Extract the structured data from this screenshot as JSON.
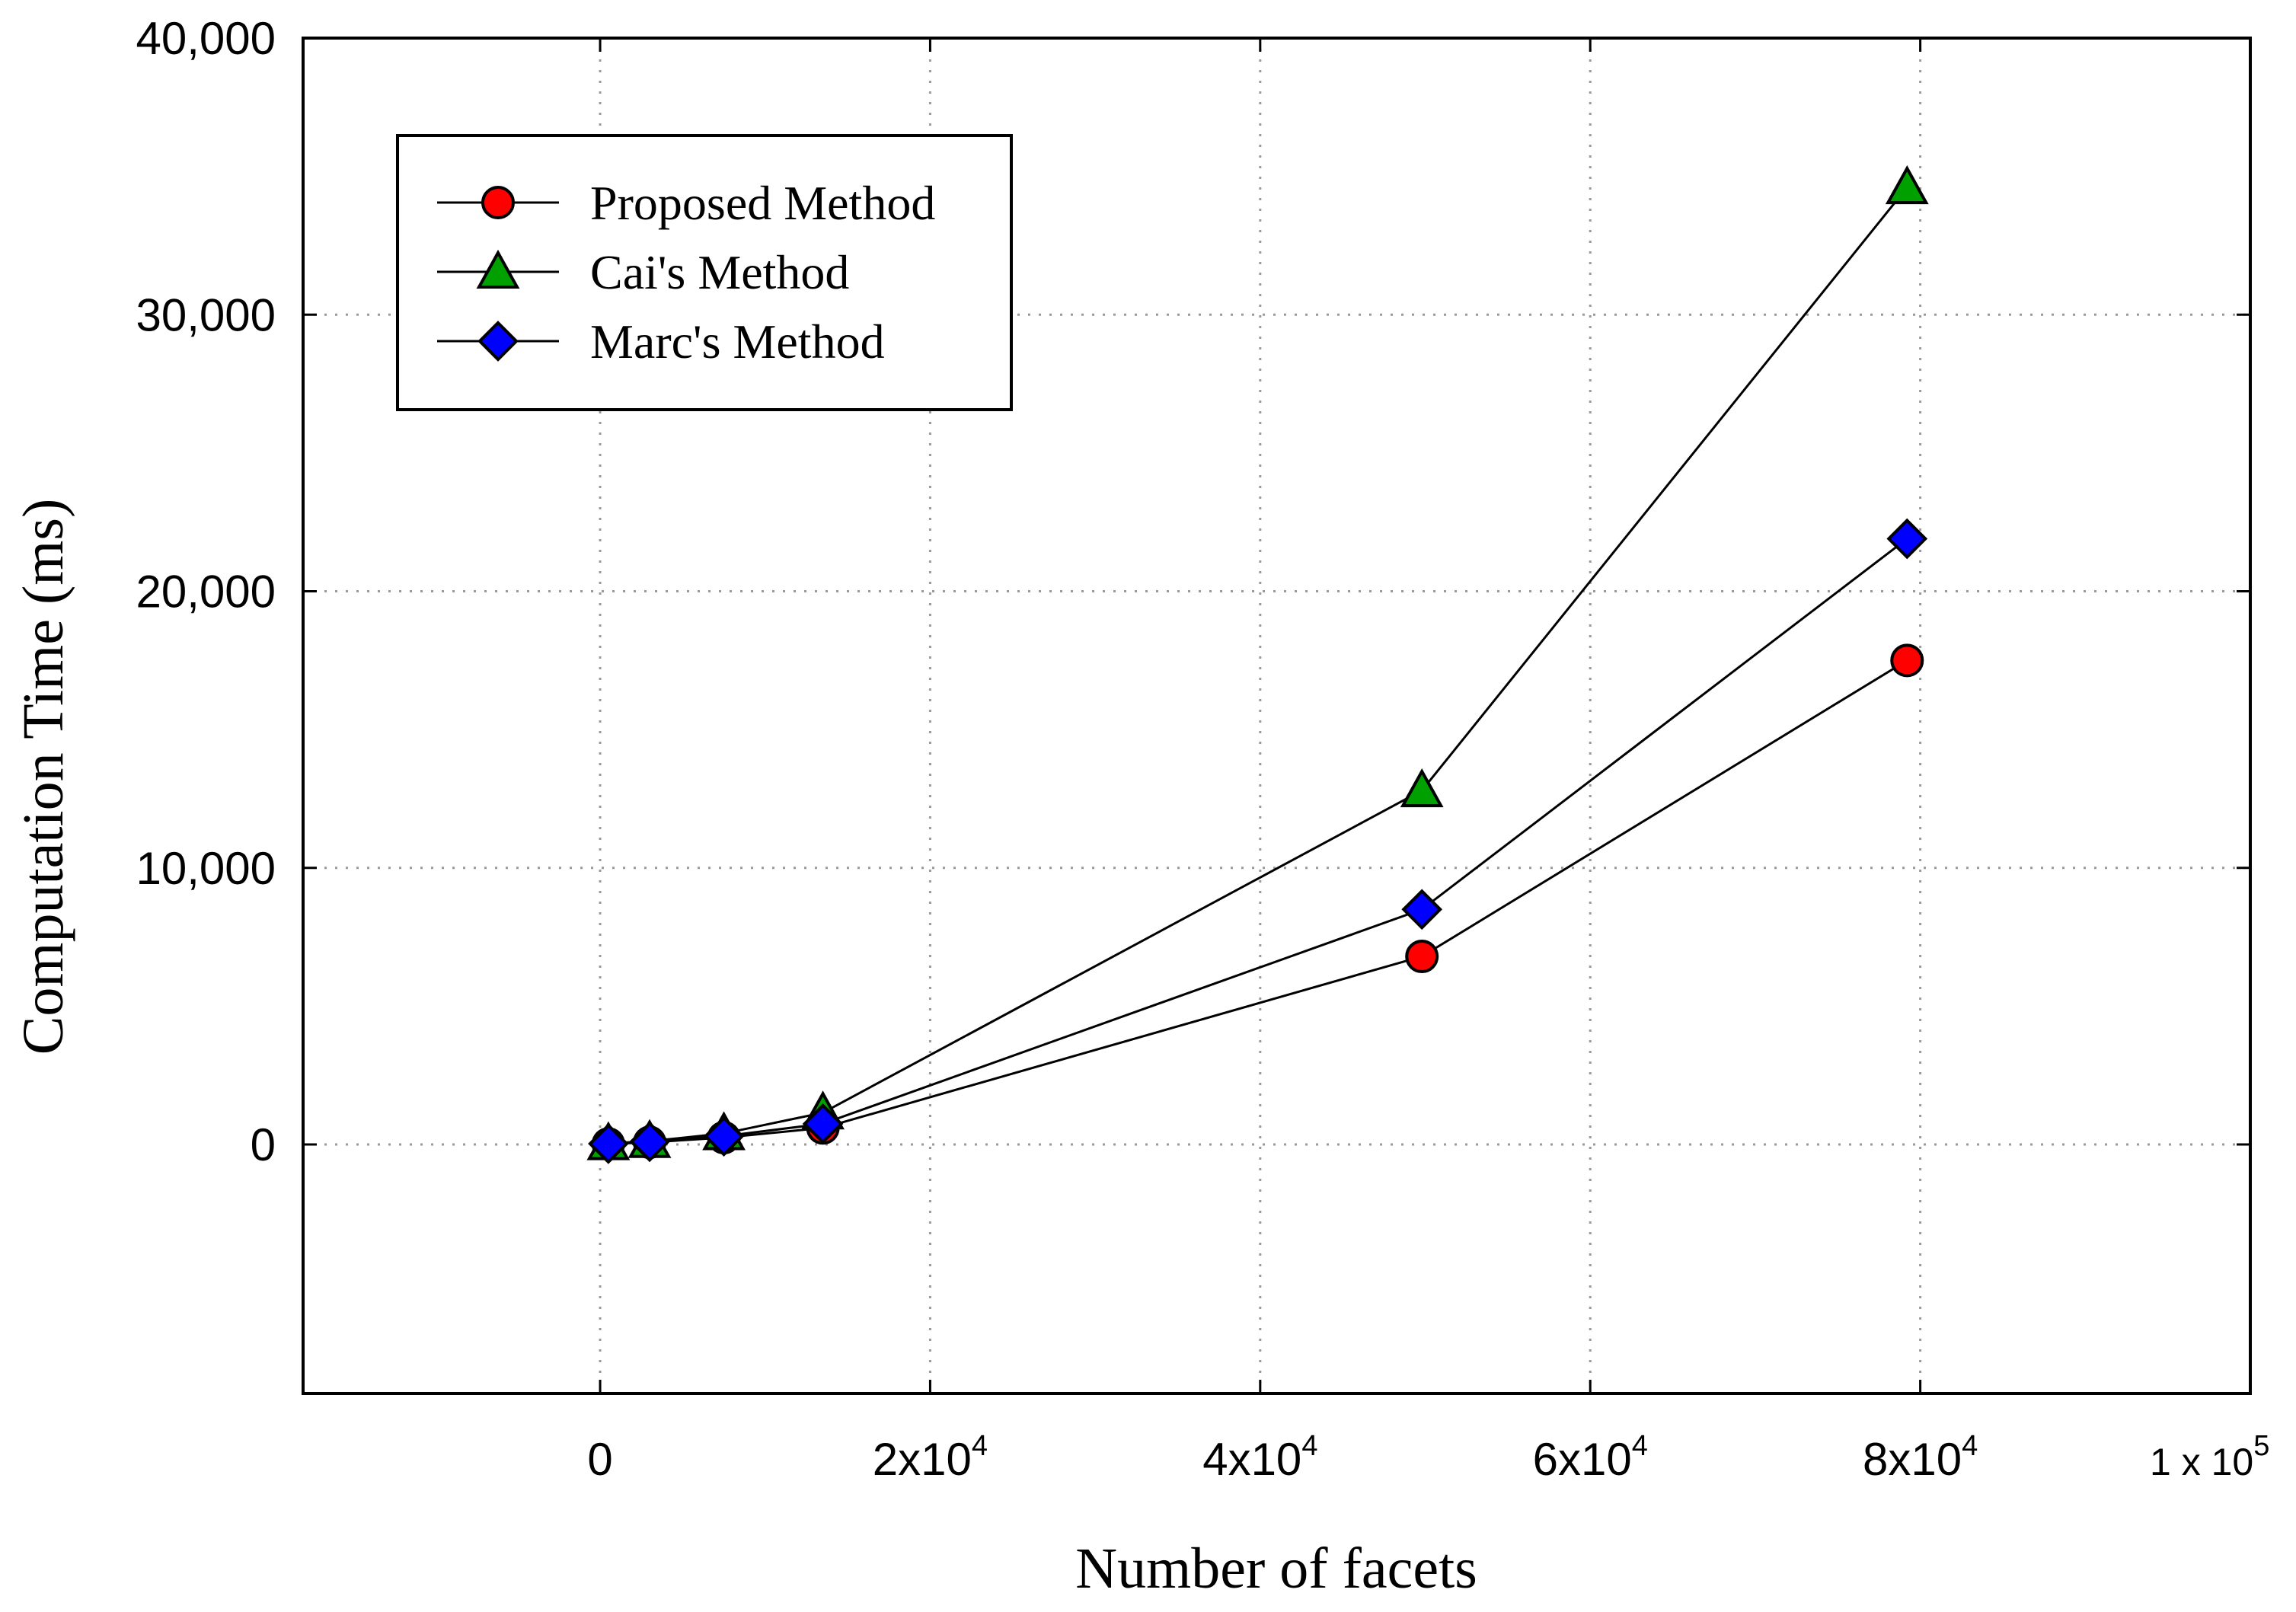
{
  "chart_data": {
    "type": "line",
    "xlabel": "Number of facets",
    "ylabel": "Computation Time (ms)",
    "xlim": [
      -18000,
      100000
    ],
    "ylim": [
      -9000,
      40000
    ],
    "x_ticks": [
      {
        "value": 0,
        "mantissa": "0",
        "base": "",
        "exponent": ""
      },
      {
        "value": 20000,
        "mantissa": "2",
        "base": "x10",
        "exponent": "4"
      },
      {
        "value": 40000,
        "mantissa": "4",
        "base": "x10",
        "exponent": "4"
      },
      {
        "value": 60000,
        "mantissa": "6",
        "base": "x10",
        "exponent": "4"
      },
      {
        "value": 80000,
        "mantissa": "8",
        "base": "x10",
        "exponent": "4"
      },
      {
        "value": 100000,
        "mantissa": "1",
        "base": " x 10",
        "exponent": "5"
      }
    ],
    "y_ticks": [
      {
        "value": 0,
        "label": "0"
      },
      {
        "value": 10000,
        "label": "10,000"
      },
      {
        "value": 20000,
        "label": "20,000"
      },
      {
        "value": 30000,
        "label": "30,000"
      },
      {
        "value": 40000,
        "label": "40,000"
      }
    ],
    "grid": true,
    "legend_position": "top-left",
    "series": [
      {
        "name": "Proposed Method",
        "marker": "circle",
        "color": "#ff0000",
        "x": [
          500,
          3000,
          7500,
          13500,
          49800,
          79200
        ],
        "values": [
          20,
          80,
          250,
          600,
          6800,
          17500
        ]
      },
      {
        "name": "Cai's Method",
        "marker": "triangle",
        "color": "#00a000",
        "x": [
          500,
          3000,
          7500,
          13500,
          49800,
          79200
        ],
        "values": [
          40,
          120,
          400,
          1150,
          12800,
          34600
        ]
      },
      {
        "name": "Marc's Method",
        "marker": "diamond",
        "color": "#0000ff",
        "x": [
          500,
          3000,
          7500,
          13500,
          49800,
          79200
        ],
        "values": [
          30,
          100,
          300,
          750,
          8500,
          21900
        ]
      }
    ]
  }
}
